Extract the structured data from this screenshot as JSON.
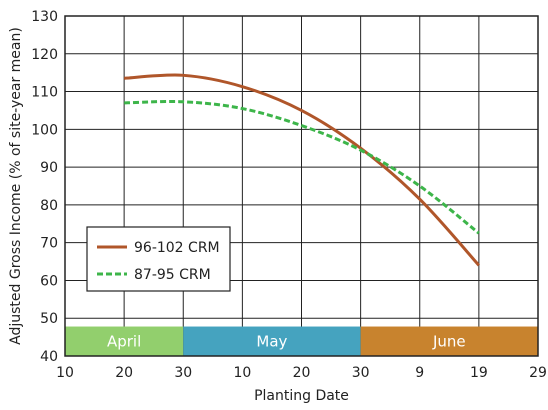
{
  "chart_data": {
    "type": "line",
    "title": "",
    "xlabel": "Planting Date",
    "ylabel": "Adjusted Gross Income (% of site-year mean)",
    "ylim": [
      40,
      130
    ],
    "yticks": [
      "40",
      "50",
      "60",
      "70",
      "80",
      "90",
      "100",
      "110",
      "120",
      "130"
    ],
    "xticks": [
      "10",
      "20",
      "30",
      "10",
      "20",
      "30",
      "9",
      "19",
      "29"
    ],
    "grid": true,
    "legend": {
      "placement": "bottom-left"
    },
    "months": [
      {
        "label": "April",
        "color": "#92cf6d"
      },
      {
        "label": "May",
        "color": "#45a3bf"
      },
      {
        "label": "June",
        "color": "#c8832e"
      }
    ],
    "series": [
      {
        "name": "96-102 CRM",
        "color": "#b0562a",
        "dash": "solid",
        "points": [
          {
            "x": "20",
            "y": 113.5
          },
          {
            "x": "30",
            "y": 114.3
          },
          {
            "x": "10",
            "y": 111.3
          },
          {
            "x": "20",
            "y": 105.0
          },
          {
            "x": "30",
            "y": 95.0
          },
          {
            "x": "9",
            "y": 81.5
          },
          {
            "x": "19",
            "y": 64.0
          }
        ]
      },
      {
        "name": "87-95 CRM",
        "color": "#3db54a",
        "dash": "dashed",
        "points": [
          {
            "x": "20",
            "y": 107.0
          },
          {
            "x": "30",
            "y": 107.3
          },
          {
            "x": "10",
            "y": 105.5
          },
          {
            "x": "20",
            "y": 101.0
          },
          {
            "x": "30",
            "y": 94.5
          },
          {
            "x": "9",
            "y": 85.0
          },
          {
            "x": "19",
            "y": 72.5
          }
        ]
      }
    ]
  }
}
